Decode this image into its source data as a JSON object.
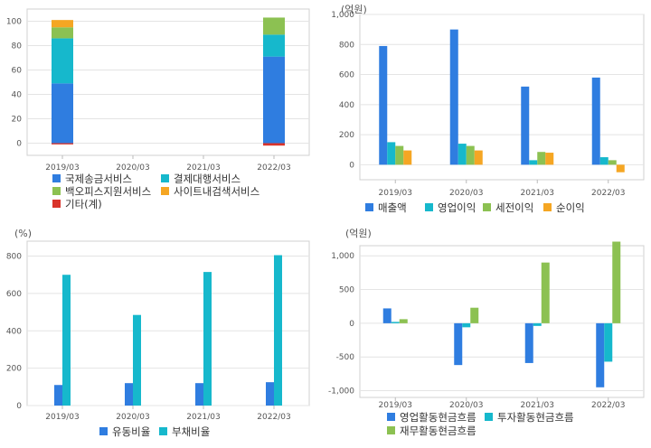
{
  "chart_data": [
    {
      "type": "bar",
      "stacked": true,
      "unit_label": "",
      "categories": [
        "2019/03",
        "2020/03",
        "2021/03",
        "2022/03"
      ],
      "series": [
        {
          "name": "국제송금서비스",
          "color": "#2f7de0",
          "values": [
            49,
            null,
            null,
            71
          ]
        },
        {
          "name": "결제대행서비스",
          "color": "#16b8cc",
          "values": [
            37,
            null,
            null,
            18
          ]
        },
        {
          "name": "백오피스지원서비스",
          "color": "#8cc152",
          "values": [
            9,
            null,
            null,
            14
          ]
        },
        {
          "name": "사이트내검색서비스",
          "color": "#f5a623",
          "values": [
            6,
            null,
            null,
            0
          ]
        },
        {
          "name": "기타(계)",
          "color": "#d9342b",
          "values": [
            -1,
            null,
            null,
            -2
          ]
        }
      ],
      "ylim": [
        -10,
        110
      ],
      "yticks": [
        0,
        20,
        40,
        60,
        80,
        100
      ],
      "ytick_labels": [
        "0",
        "20",
        "40",
        "60",
        "80",
        "100"
      ],
      "grid": true
    },
    {
      "type": "bar",
      "unit_label": "(억원)",
      "categories": [
        "2019/03",
        "2020/03",
        "2021/03",
        "2022/03"
      ],
      "series": [
        {
          "name": "매출액",
          "color": "#2f7de0",
          "values": [
            790,
            900,
            520,
            580
          ]
        },
        {
          "name": "영업이익",
          "color": "#16b8cc",
          "values": [
            150,
            140,
            30,
            50
          ]
        },
        {
          "name": "세전이익",
          "color": "#8cc152",
          "values": [
            125,
            125,
            85,
            30
          ]
        },
        {
          "name": "순이익",
          "color": "#f5a623",
          "values": [
            95,
            95,
            80,
            -50
          ]
        }
      ],
      "ylim": [
        -100,
        1000
      ],
      "yticks": [
        0,
        200,
        400,
        600,
        800,
        1000
      ],
      "ytick_labels": [
        "0",
        "200",
        "400",
        "600",
        "800",
        "1,000"
      ],
      "grid": true
    },
    {
      "type": "bar",
      "unit_label": "(%)",
      "categories": [
        "2019/03",
        "2020/03",
        "2021/03",
        "2022/03"
      ],
      "series": [
        {
          "name": "유동비율",
          "color": "#2f7de0",
          "values": [
            110,
            120,
            120,
            125
          ]
        },
        {
          "name": "부채비율",
          "color": "#16b8cc",
          "values": [
            700,
            485,
            715,
            805
          ]
        }
      ],
      "ylim": [
        0,
        880
      ],
      "yticks": [
        0,
        200,
        400,
        600,
        800
      ],
      "ytick_labels": [
        "0",
        "200",
        "400",
        "600",
        "800"
      ],
      "grid": true
    },
    {
      "type": "bar",
      "unit_label": "(억원)",
      "categories": [
        "2019/03",
        "2020/03",
        "2021/03",
        "2022/03"
      ],
      "series": [
        {
          "name": "영업활동현금흐름",
          "color": "#2f7de0",
          "values": [
            220,
            -620,
            -590,
            -950
          ]
        },
        {
          "name": "투자활동현금흐름",
          "color": "#16b8cc",
          "values": [
            20,
            -60,
            -40,
            -570
          ]
        },
        {
          "name": "재무활동현금흐름",
          "color": "#8cc152",
          "values": [
            60,
            230,
            900,
            1210
          ]
        }
      ],
      "ylim": [
        -1100,
        1150
      ],
      "yticks": [
        -1000,
        -500,
        0,
        500,
        1000
      ],
      "ytick_labels": [
        "-1,000",
        "-500",
        "0",
        "500",
        "1,000"
      ],
      "grid": true
    }
  ]
}
